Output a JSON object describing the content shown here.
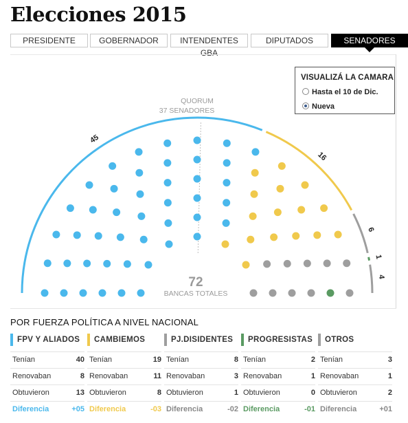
{
  "title": "Elecciones 2015",
  "tabs": [
    {
      "label": "PRESIDENTE",
      "active": false
    },
    {
      "label": "GOBERNADOR",
      "active": false
    },
    {
      "label": "INTENDENTES GBA",
      "active": false
    },
    {
      "label": "DIPUTADOS",
      "active": false
    },
    {
      "label": "SENADORES",
      "active": true
    }
  ],
  "camara": {
    "title": "VISUALIZÁ LA CAMARA",
    "options": [
      {
        "label": "Hasta el 10 de Dic.",
        "selected": false
      },
      {
        "label": "Nueva",
        "selected": true
      }
    ]
  },
  "chart_data": {
    "type": "parliament",
    "total": 72,
    "total_label": "BANCAS TOTALES",
    "quorum_line1": "QUORUM",
    "quorum_line2": "37 SENADORES",
    "groups": [
      {
        "name": "FPV Y ALIADOS",
        "seats": 45,
        "color": "#4ab8ec",
        "arc_label": "45"
      },
      {
        "name": "CAMBIEMOS",
        "seats": 16,
        "color": "#f0c94c",
        "arc_label": "16"
      },
      {
        "name": "PJ.DISIDENTES",
        "seats": 6,
        "color": "#9e9e9e",
        "arc_label": "6"
      },
      {
        "name": "PROGRESISTAS",
        "seats": 1,
        "color": "#5a9a62",
        "arc_label": "1"
      },
      {
        "name": "OTROS",
        "seats": 4,
        "color": "#9e9e9e",
        "arc_label": "4"
      }
    ]
  },
  "section_title": "POR FUERZA POLÍTICA A NIVEL NACIONAL",
  "parties": [
    {
      "name": "FPV Y ALIADOS",
      "color": "#4ab8ec",
      "tenian": "40",
      "renovaban": "8",
      "obtuvieron": "13",
      "diferencia": "+05"
    },
    {
      "name": "CAMBIEMOS",
      "color": "#f0c94c",
      "tenian": "19",
      "renovaban": "11",
      "obtuvieron": "8",
      "diferencia": "-03"
    },
    {
      "name": "PJ.DISIDENTES",
      "color": "#9e9e9e",
      "tenian": "8",
      "renovaban": "3",
      "obtuvieron": "1",
      "diferencia": "-02"
    },
    {
      "name": "PROGRESISTAS",
      "color": "#5a9a62",
      "tenian": "2",
      "renovaban": "1",
      "obtuvieron": "0",
      "diferencia": "-01"
    },
    {
      "name": "OTROS",
      "color": "#9e9e9e",
      "tenian": "3",
      "renovaban": "1",
      "obtuvieron": "2",
      "diferencia": "+01"
    }
  ],
  "row_labels": {
    "tenian": "Tenían",
    "renovaban": "Renovaban",
    "obtuvieron": "Obtuvieron",
    "diferencia": "Diferencia"
  }
}
